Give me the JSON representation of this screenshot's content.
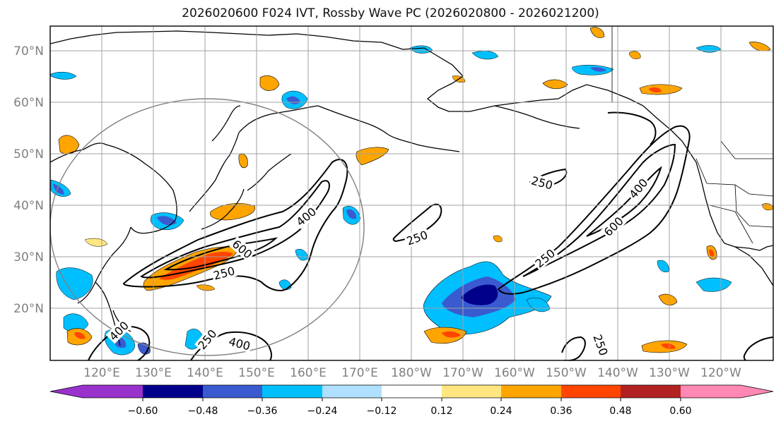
{
  "title": "2026020600 F024 IVT, Rossby Wave PC (2026020800 - 2026021200)",
  "lat_labels": [
    "70°N",
    "60°N",
    "50°N",
    "40°N",
    "30°N",
    "20°N"
  ],
  "lon_labels": [
    "120°E",
    "130°E",
    "140°E",
    "150°E",
    "160°E",
    "170°E",
    "180°W",
    "170°W",
    "160°W",
    "150°W",
    "140°W",
    "130°W",
    "120°W"
  ],
  "colorbar": {
    "ticks": [
      "−0.60",
      "−0.48",
      "−0.36",
      "−0.24",
      "−0.12",
      "0.12",
      "0.24",
      "0.36",
      "0.48",
      "0.60"
    ],
    "colors": [
      "#9932cc",
      "#00008b",
      "#3a5bd0",
      "#00bfff",
      "#b0e0ff",
      "#ffffff",
      "#ffe680",
      "#ffa500",
      "#ff4500",
      "#b22222",
      "#ff88b4"
    ]
  },
  "contour_labels": {
    "west": [
      "400",
      "600",
      "250"
    ],
    "east": [
      "250",
      "400",
      "600",
      "250",
      "250"
    ],
    "south": [
      "250",
      "400",
      "250",
      "400"
    ]
  },
  "colors": {
    "positive": "#ffa500",
    "positive_strong": "#ff4500",
    "negative": "#00bfff",
    "negative_strong": "#3a5bd0",
    "deep": "#00008b"
  }
}
